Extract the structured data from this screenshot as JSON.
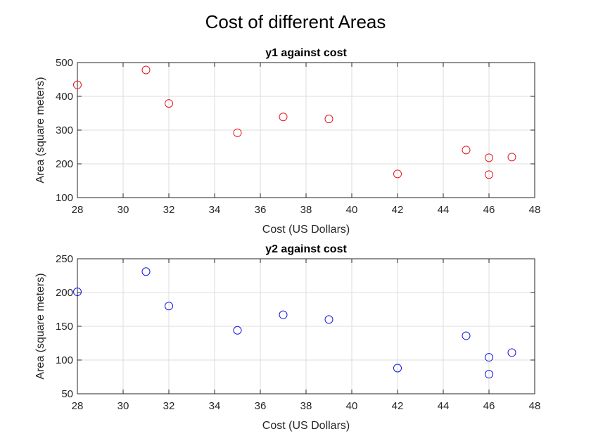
{
  "figure_title": "Cost of different Areas",
  "chart_data": [
    {
      "type": "scatter",
      "title": "y1 against cost",
      "xlabel": "Cost (US Dollars)",
      "ylabel": "Area (square meters)",
      "xlim": [
        28,
        48
      ],
      "ylim": [
        100,
        500
      ],
      "xticks": [
        28,
        30,
        32,
        34,
        36,
        38,
        40,
        42,
        44,
        46,
        48
      ],
      "yticks": [
        100,
        200,
        300,
        400,
        500
      ],
      "grid": true,
      "marker": "circle-open",
      "color": "#e8141a",
      "x": [
        28,
        31,
        32,
        35,
        37,
        39,
        42,
        45,
        46,
        46,
        47
      ],
      "y": [
        434,
        478,
        379,
        292,
        339,
        333,
        170,
        241,
        218,
        168,
        220
      ]
    },
    {
      "type": "scatter",
      "title": "y2 against cost",
      "xlabel": "Cost (US Dollars)",
      "ylabel": "Area (square meters)",
      "xlim": [
        28,
        48
      ],
      "ylim": [
        50,
        250
      ],
      "xticks": [
        28,
        30,
        32,
        34,
        36,
        38,
        40,
        42,
        44,
        46,
        48
      ],
      "yticks": [
        50,
        100,
        150,
        200,
        250
      ],
      "grid": true,
      "marker": "circle-open",
      "color": "#1414e6",
      "x": [
        28,
        31,
        32,
        35,
        37,
        39,
        42,
        45,
        46,
        46,
        47
      ],
      "y": [
        201,
        231,
        180,
        144,
        167,
        160,
        88,
        136,
        104,
        79,
        111
      ]
    }
  ]
}
